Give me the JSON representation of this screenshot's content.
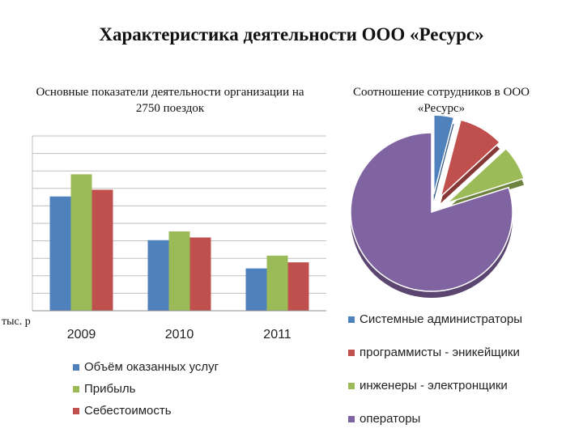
{
  "title": "Характеристика деятельности ООО «Ресурс»",
  "unit_label": "тыс. р",
  "chart_data": [
    {
      "type": "bar",
      "title": "Основные показатели деятельности организации на 2750 поездок",
      "categories": [
        "2009",
        "2010",
        "2011"
      ],
      "series": [
        {
          "name": "Объём оказанных услуг",
          "values": [
            170,
            105,
            63
          ],
          "color": "#4f81bd"
        },
        {
          "name": "Прибыль",
          "values": [
            203,
            118,
            82
          ],
          "color": "#9bbb59"
        },
        {
          "name": "Себестоимость",
          "values": [
            180,
            109,
            72
          ],
          "color": "#c0504d"
        }
      ],
      "ylim": [
        0,
        260
      ],
      "gridlines": [
        0,
        26,
        52,
        78,
        104,
        130,
        156,
        182,
        208,
        234,
        260
      ],
      "grid": true,
      "legend": "bottom"
    },
    {
      "type": "pie",
      "title": "Соотношение сотрудников в ООО «Ресурс»",
      "slices": [
        {
          "label": "Системные администраторы",
          "value": 4,
          "color": "#4f81bd"
        },
        {
          "label": "программисты - эникейщики",
          "value": 9,
          "color": "#c0504d"
        },
        {
          "label": "инженеры - электронщики",
          "value": 7,
          "color": "#9bbb59"
        },
        {
          "label": "операторы",
          "value": 80,
          "color": "#8064a2"
        }
      ],
      "legend": "bottom"
    }
  ]
}
